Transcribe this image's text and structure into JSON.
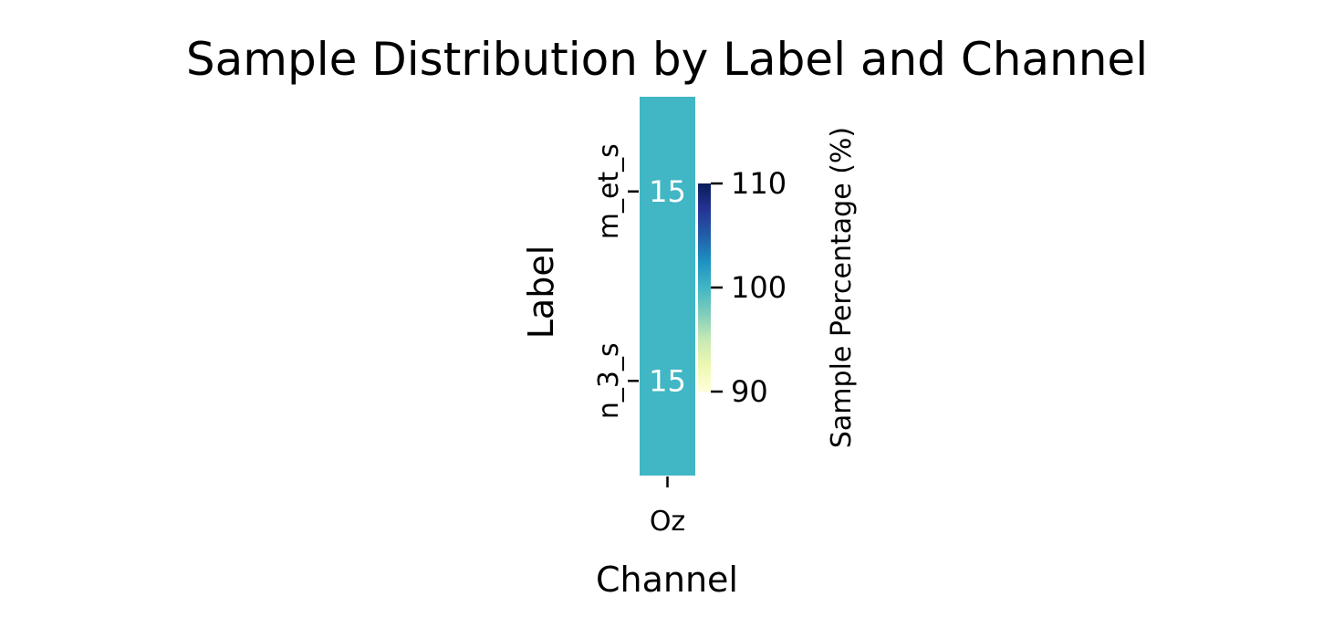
{
  "chart_data": {
    "type": "heatmap",
    "title": "Sample Distribution by Label and Channel",
    "xlabel": "Channel",
    "ylabel": "Label",
    "x_categories": [
      "Oz"
    ],
    "y_categories": [
      "m_et_s",
      "n_3_s"
    ],
    "values": [
      [
        15
      ],
      [
        15
      ]
    ],
    "cell_labels": [
      [
        "15"
      ],
      [
        "15"
      ]
    ],
    "colorbar": {
      "label": "Sample Percentage (%)",
      "range": [
        90,
        110
      ],
      "ticks": [
        110,
        100,
        90
      ],
      "tick_labels": [
        "110",
        "100",
        "90"
      ],
      "colormap": "YlGnBu",
      "colors": [
        "#ffffd9",
        "#edf8b1",
        "#c7e9b4",
        "#7fcdbb",
        "#41b6c4",
        "#1d91c0",
        "#225ea8",
        "#253494",
        "#081d58"
      ]
    },
    "cell_color": "#41b6c4",
    "annotation_color": "#ffffff"
  }
}
